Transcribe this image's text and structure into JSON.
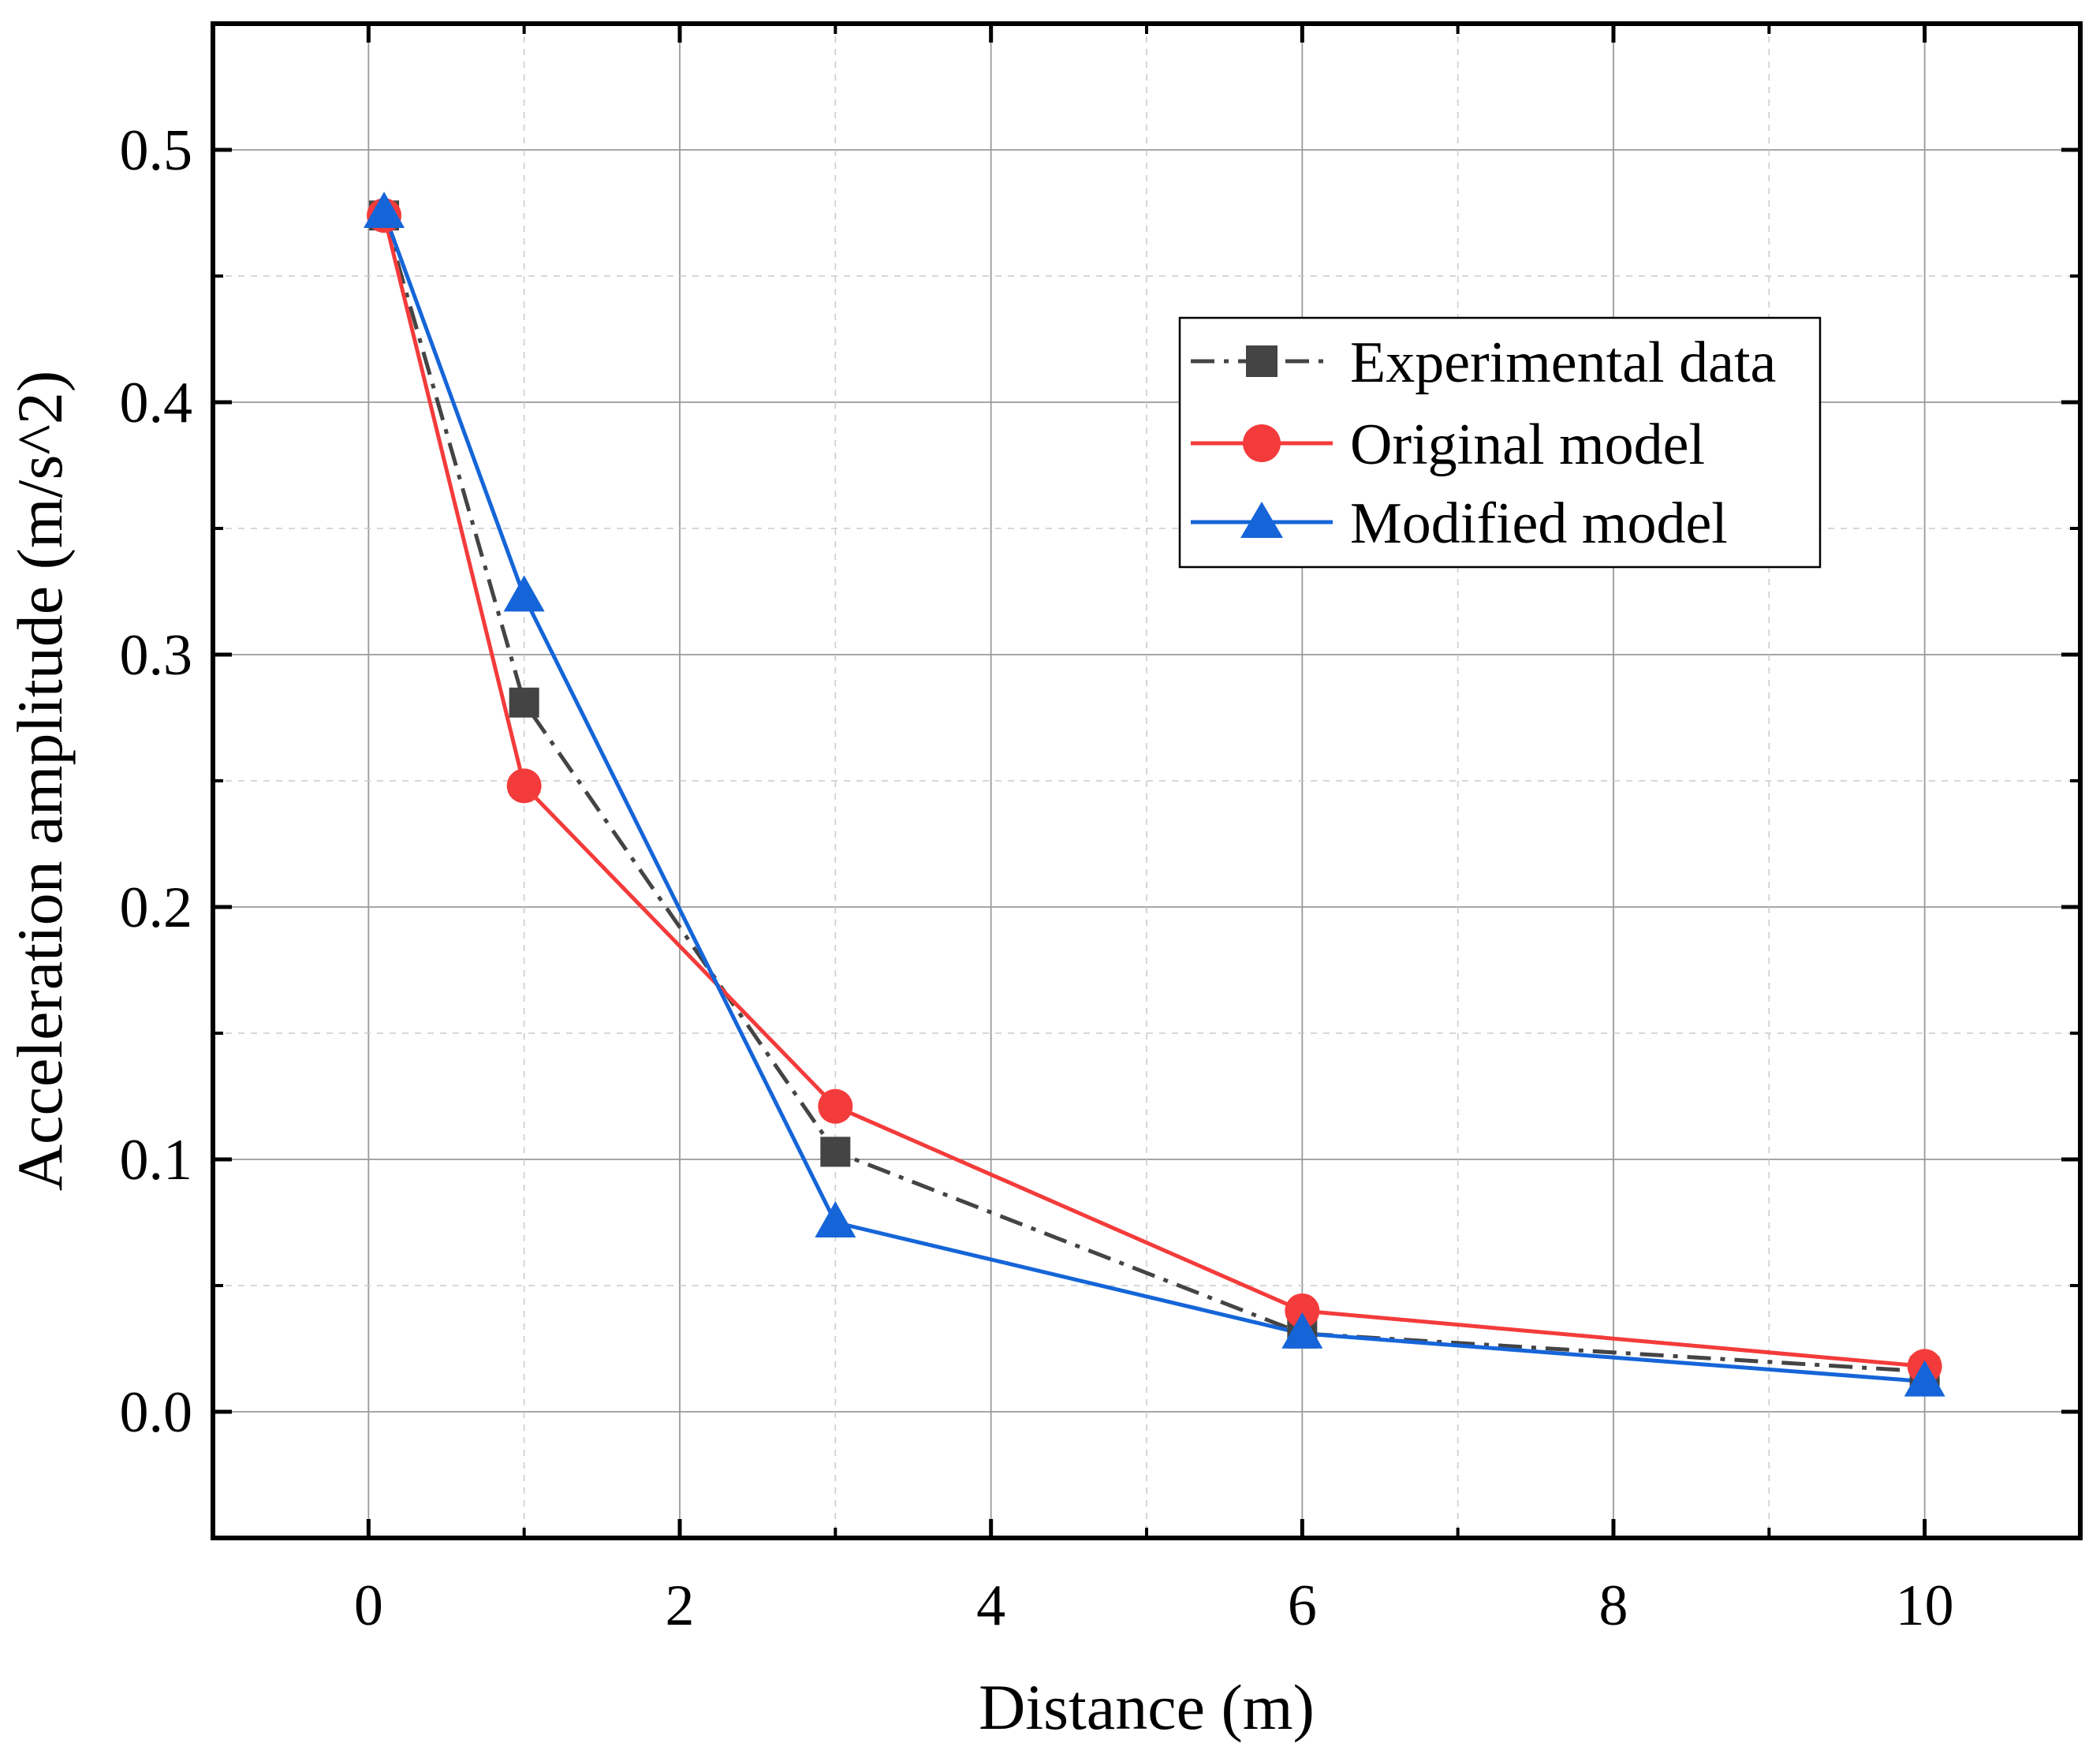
{
  "chart_data": {
    "type": "line",
    "title": "",
    "xlabel": "Distance (m)",
    "ylabel": "Acceleration amplitude (m/s^2)",
    "xlim": [
      -1,
      11
    ],
    "ylim": [
      -0.05,
      0.55
    ],
    "xticks": [
      0,
      2,
      4,
      6,
      8,
      10
    ],
    "xtick_labels": [
      "0",
      "2",
      "4",
      "6",
      "8",
      "10"
    ],
    "xminor": [
      1,
      3,
      5,
      7,
      9
    ],
    "yticks": [
      0.0,
      0.1,
      0.2,
      0.3,
      0.4,
      0.5
    ],
    "ytick_labels": [
      "0.0",
      "0.1",
      "0.2",
      "0.3",
      "0.4",
      "0.5"
    ],
    "yminor": [
      0.05,
      0.15,
      0.25,
      0.35,
      0.45
    ],
    "grid": true,
    "legend_position": "upper-right",
    "series": [
      {
        "name": "Experimental data",
        "color": "#444444",
        "marker": "square",
        "line": "dash-dot",
        "x": [
          0.1,
          1,
          3,
          6,
          10
        ],
        "y": [
          0.474,
          0.281,
          0.103,
          0.031,
          0.016
        ]
      },
      {
        "name": "Original model",
        "color": "#f43b3b",
        "marker": "circle",
        "line": "solid",
        "x": [
          0.1,
          1,
          3,
          6,
          10
        ],
        "y": [
          0.474,
          0.248,
          0.121,
          0.04,
          0.018
        ]
      },
      {
        "name": "Modified model",
        "color": "#1565d8",
        "marker": "triangle",
        "line": "solid",
        "x": [
          0.1,
          1,
          3,
          6,
          10
        ],
        "y": [
          0.475,
          0.323,
          0.075,
          0.031,
          0.012
        ]
      }
    ]
  }
}
